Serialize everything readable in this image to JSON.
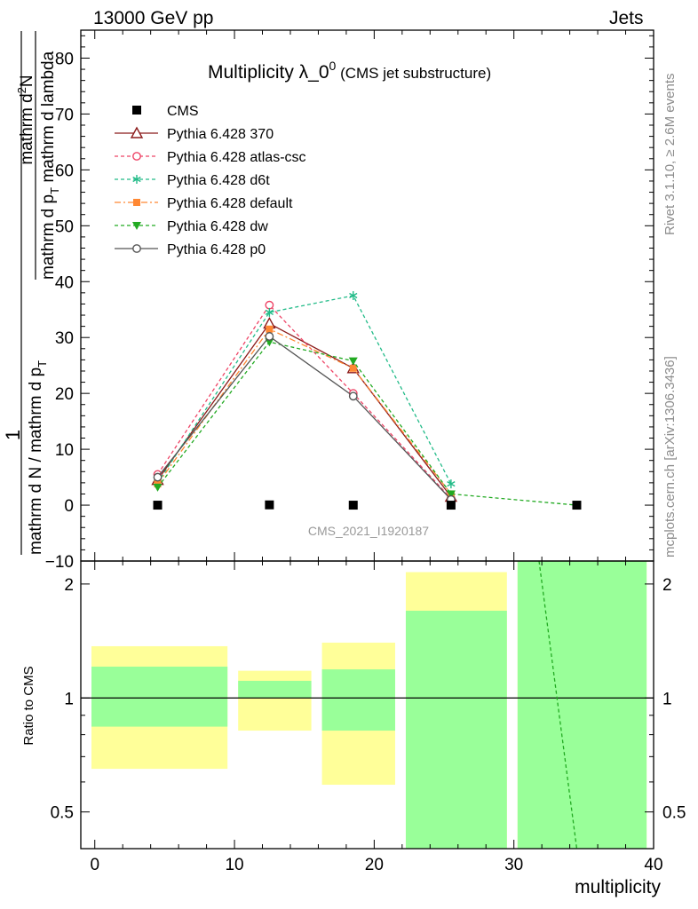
{
  "header": {
    "left": "13000 GeV pp",
    "right": "Jets"
  },
  "side_labels": {
    "rivet": "Rivet 3.1.10, ≥ 2.6M events",
    "mcplots": "mcplots.cern.ch [arXiv:1306.3436]"
  },
  "analysis_id": "CMS_2021_I1920187",
  "colors": {
    "ratio_band_inner": "#99ff99",
    "ratio_band_outer": "#ffff99"
  },
  "chart_data": {
    "type": "line",
    "title": "Multiplicity λ_0",
    "title_superscript": "0",
    "title_note": "(CMS jet substructure)",
    "xlabel": "multiplicity",
    "ylabel": {
      "fraction_numerator": "1",
      "denominator_line1": "mathrm d N / mathrm d p",
      "denominator_sub1": "T",
      "fraction2_numerator": "mathrm d",
      "fraction2_numerator_super": "2",
      "fraction2_numerator_end": "N",
      "fraction2_denominator": "mathrm d p",
      "fraction2_denominator_sub": "T",
      "fraction2_denominator_end": "mathrm d lambda"
    },
    "ratio_ylabel": "Ratio to CMS",
    "xlim": [
      -1,
      40
    ],
    "ylim": [
      -10,
      85
    ],
    "ratio_ylim": [
      0.4,
      2.3
    ],
    "xticks": [
      "0",
      "10",
      "20",
      "30",
      "40"
    ],
    "yticks": [
      "−10",
      "0",
      "10",
      "20",
      "30",
      "40",
      "50",
      "60",
      "70",
      "80"
    ],
    "ratio_yticks": [
      "0.5",
      "1",
      "2"
    ],
    "data": {
      "name": "CMS",
      "x": [
        4.5,
        12.5,
        18.5,
        25.5,
        34.5
      ],
      "y": [
        0,
        0.05,
        0,
        0,
        0
      ],
      "bins": [
        [
          -1,
          9.5
        ],
        [
          9.5,
          15.5
        ],
        [
          15.5,
          21.5
        ],
        [
          21.5,
          29.5
        ],
        [
          29.5,
          39.5
        ]
      ]
    },
    "ratio_bands": [
      {
        "xrange": [
          -1,
          9.5
        ],
        "inner": [
          0.84,
          1.21
        ],
        "outer": [
          0.65,
          1.37
        ]
      },
      {
        "xrange": [
          9.5,
          15.5
        ],
        "inner": [
          1.0,
          1.11
        ],
        "outer": [
          0.82,
          1.18
        ]
      },
      {
        "xrange": [
          15.5,
          21.5
        ],
        "inner": [
          0.82,
          1.19
        ],
        "outer": [
          0.59,
          1.4
        ]
      },
      {
        "xrange": [
          21.5,
          29.5
        ],
        "inner": [
          0.4,
          1.7
        ],
        "outer": [
          0.4,
          2.15
        ]
      },
      {
        "xrange": [
          29.5,
          39.5
        ],
        "inner": [
          0.4,
          2.3
        ],
        "outer": [
          0.4,
          2.3
        ]
      }
    ],
    "series": [
      {
        "name": "Pythia 6.428 370",
        "color": "#8b1a1a",
        "dash": "",
        "marker": "triangle-open",
        "x": [
          4.5,
          12.5,
          18.5,
          25.5
        ],
        "y": [
          4.5,
          32.5,
          24.5,
          1.5
        ]
      },
      {
        "name": "Pythia 6.428 atlas-csc",
        "color": "#ee4466",
        "dash": "4,3",
        "marker": "circle-open",
        "x": [
          4.5,
          12.5,
          18.5,
          25.5
        ],
        "y": [
          5.5,
          35.8,
          20.0,
          1.2
        ]
      },
      {
        "name": "Pythia 6.428 d6t",
        "color": "#22bb88",
        "dash": "4,3",
        "marker": "star",
        "x": [
          4.5,
          12.5,
          18.5,
          25.5
        ],
        "y": [
          4.0,
          34.5,
          37.5,
          3.8
        ]
      },
      {
        "name": "Pythia 6.428 default",
        "color": "#ff8833",
        "dash": "7,3,2,3",
        "marker": "square",
        "x": [
          4.5,
          12.5,
          18.5,
          25.5
        ],
        "y": [
          3.8,
          31.5,
          24.5,
          2.0
        ]
      },
      {
        "name": "Pythia 6.428 dw",
        "color": "#22aa22",
        "dash": "4,3",
        "marker": "triangle-down",
        "x": [
          4.5,
          12.5,
          18.5,
          25.5,
          34.5
        ],
        "y": [
          3.2,
          29.2,
          25.8,
          2.0,
          0.0
        ]
      },
      {
        "name": "Pythia 6.428 p0",
        "color": "#555555",
        "dash": "",
        "marker": "circle-open",
        "x": [
          4.5,
          12.5,
          18.5,
          25.5
        ],
        "y": [
          5.0,
          30.2,
          19.5,
          1.0
        ]
      }
    ],
    "ratio_series": [
      {
        "name": "Pythia 6.428 dw",
        "color": "#22aa22",
        "dash": "4,3",
        "points": [
          [
            31.8,
            2.3
          ],
          [
            34.5,
            0.4
          ]
        ]
      }
    ]
  }
}
